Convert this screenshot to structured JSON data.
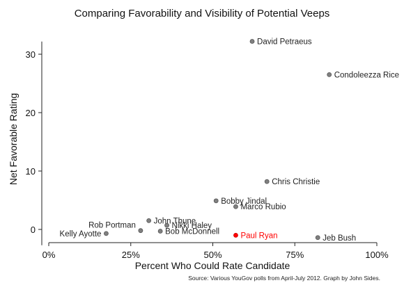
{
  "chart_data": {
    "type": "scatter",
    "title": "Comparing Favorability and Visibility of Potential Veeps",
    "xlabel": "Percent Who Could Rate Candidate",
    "ylabel": "Net Favorable Rating",
    "xlim": [
      0,
      100
    ],
    "ylim": [
      -2,
      33
    ],
    "x_ticks": [
      0,
      25,
      50,
      75,
      100
    ],
    "x_tick_labels": [
      "0%",
      "25%",
      "50%",
      "75%",
      "100%"
    ],
    "y_ticks": [
      0,
      10,
      20,
      30
    ],
    "y_tick_labels": [
      "0",
      "10",
      "20",
      "30"
    ],
    "grid": false,
    "legend": "none",
    "points": [
      {
        "name": "David Petraeus",
        "x": 62,
        "y": 32.2,
        "color": "#808080",
        "label_side": "right"
      },
      {
        "name": "Condoleezza Rice",
        "x": 85.5,
        "y": 26.5,
        "color": "#808080",
        "label_side": "right"
      },
      {
        "name": "Chris Christie",
        "x": 66.5,
        "y": 8.2,
        "color": "#808080",
        "label_side": "right"
      },
      {
        "name": "Bobby Jindal",
        "x": 51,
        "y": 4.9,
        "color": "#808080",
        "label_side": "right"
      },
      {
        "name": "Marco Rubio",
        "x": 57,
        "y": 3.9,
        "color": "#808080",
        "label_side": "right"
      },
      {
        "name": "John Thune",
        "x": 30.5,
        "y": 1.5,
        "color": "#808080",
        "label_side": "right"
      },
      {
        "name": "Nikki Haley",
        "x": 36,
        "y": 0.7,
        "color": "#808080",
        "label_side": "right"
      },
      {
        "name": "Bob McDonnell",
        "x": 34,
        "y": -0.3,
        "color": "#808080",
        "label_side": "right"
      },
      {
        "name": "Rob Portman",
        "x": 28,
        "y": -0.2,
        "color": "#808080",
        "label_side": "left-upper"
      },
      {
        "name": "Kelly Ayotte",
        "x": 17.5,
        "y": -0.7,
        "color": "#808080",
        "label_side": "left"
      },
      {
        "name": "Paul Ryan",
        "x": 57,
        "y": -1.0,
        "color": "#ff0000",
        "label_side": "right"
      },
      {
        "name": "Jeb Bush",
        "x": 82,
        "y": -1.4,
        "color": "#808080",
        "label_side": "right"
      }
    ],
    "highlight_color": "#ff0000",
    "point_color": "#808080",
    "source": "Source: Various YouGov polls from April-July 2012.  Graph by John Sides."
  }
}
